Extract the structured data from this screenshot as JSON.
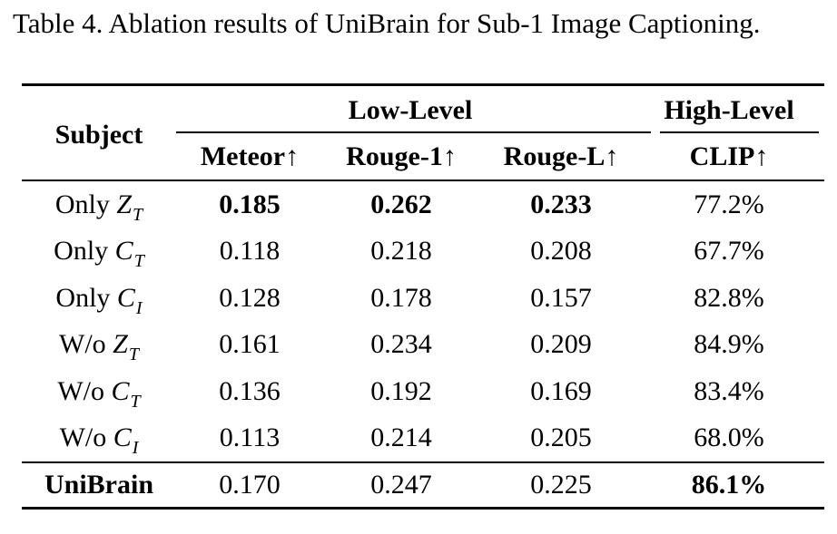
{
  "caption": "Table 4.  Ablation results of UniBrain for Sub-1 Image Captioning.",
  "headers": {
    "subject": "Subject",
    "low_level": "Low-Level",
    "high_level": "High-Level",
    "meteor": "Meteor↑",
    "rouge1": "Rouge-1↑",
    "rougeL": "Rouge-L↑",
    "clip": "CLIP↑"
  },
  "rows": [
    {
      "prefix": "Only",
      "var": "Z",
      "sub": "T",
      "meteor": "0.185",
      "rouge1": "0.262",
      "rougeL": "0.233",
      "clip": "77.2%"
    },
    {
      "prefix": "Only",
      "var": "C",
      "sub": "T",
      "meteor": "0.118",
      "rouge1": "0.218",
      "rougeL": "0.208",
      "clip": "67.7%"
    },
    {
      "prefix": "Only",
      "var": "C",
      "sub": "I",
      "meteor": "0.128",
      "rouge1": "0.178",
      "rougeL": "0.157",
      "clip": "82.8%"
    },
    {
      "prefix": "W/o",
      "var": "Z",
      "sub": "T",
      "meteor": "0.161",
      "rouge1": "0.234",
      "rougeL": "0.209",
      "clip": "84.9%"
    },
    {
      "prefix": "W/o",
      "var": "C",
      "sub": "T",
      "meteor": "0.136",
      "rouge1": "0.192",
      "rougeL": "0.169",
      "clip": "83.4%"
    },
    {
      "prefix": "W/o",
      "var": "C",
      "sub": "I",
      "meteor": "0.113",
      "rouge1": "0.214",
      "rougeL": "0.205",
      "clip": "68.0%"
    }
  ],
  "final_row": {
    "subject": "UniBrain",
    "meteor": "0.170",
    "rouge1": "0.247",
    "rougeL": "0.225",
    "clip": "86.1%"
  },
  "bold_cells": {
    "row0_meteor": true,
    "row0_rouge1": true,
    "row0_rougeL": true,
    "final_clip": true
  }
}
